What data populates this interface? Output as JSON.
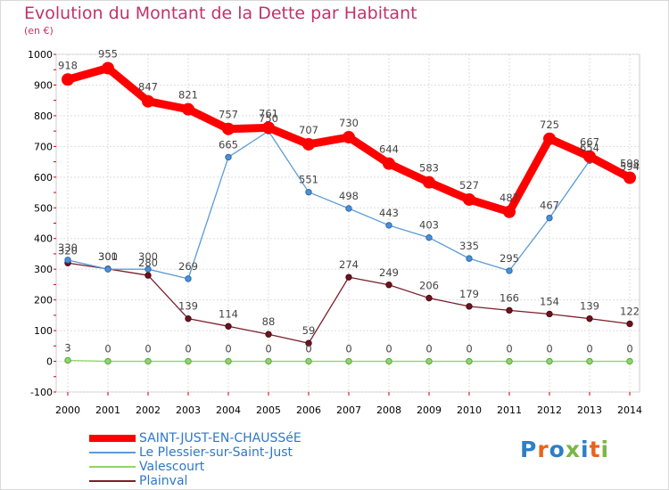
{
  "title": "Evolution du Montant de la Dette par Habitant",
  "subtitle": "(en €)",
  "logo": {
    "text": "Proxiti",
    "letter_colors": [
      "#2e7fc4",
      "#e8641d",
      "#2e7fc4",
      "#7ab648",
      "#2e7fc4",
      "#e8641d",
      "#7ab648"
    ]
  },
  "chart_data": {
    "type": "line",
    "title": "Evolution du Montant de la Dette par Habitant",
    "subtitle": "(en €)",
    "xlabel": "",
    "ylabel": "",
    "ylim": [
      -100,
      1000
    ],
    "yticks": [
      -100,
      0,
      100,
      200,
      300,
      400,
      500,
      600,
      700,
      800,
      900,
      1000
    ],
    "grid": true,
    "legend_position": "bottom-left",
    "categories": [
      "2000",
      "2001",
      "2002",
      "2003",
      "2004",
      "2005",
      "2006",
      "2007",
      "2008",
      "2009",
      "2010",
      "2011",
      "2012",
      "2013",
      "2014"
    ],
    "series": [
      {
        "name": "SAINT-JUST-EN-CHAUSSéE",
        "color": "#ff0000",
        "values": [
          918,
          955,
          847,
          821,
          757,
          761,
          707,
          730,
          644,
          583,
          527,
          487,
          725,
          667,
          598
        ]
      },
      {
        "name": "Le Plessier-sur-Saint-Just",
        "color": "#5b9bd5",
        "values": [
          330,
          300,
          300,
          269,
          665,
          750,
          551,
          498,
          443,
          403,
          335,
          295,
          467,
          654,
          594
        ]
      },
      {
        "name": "Valescourt",
        "color": "#8ed66b",
        "values": [
          3,
          0,
          0,
          0,
          0,
          0,
          0,
          0,
          0,
          0,
          0,
          0,
          0,
          0,
          0
        ]
      },
      {
        "name": "Plainval",
        "color": "#7a1f2b",
        "values": [
          320,
          301,
          280,
          139,
          114,
          88,
          59,
          274,
          249,
          206,
          179,
          166,
          154,
          139,
          122
        ]
      }
    ]
  }
}
